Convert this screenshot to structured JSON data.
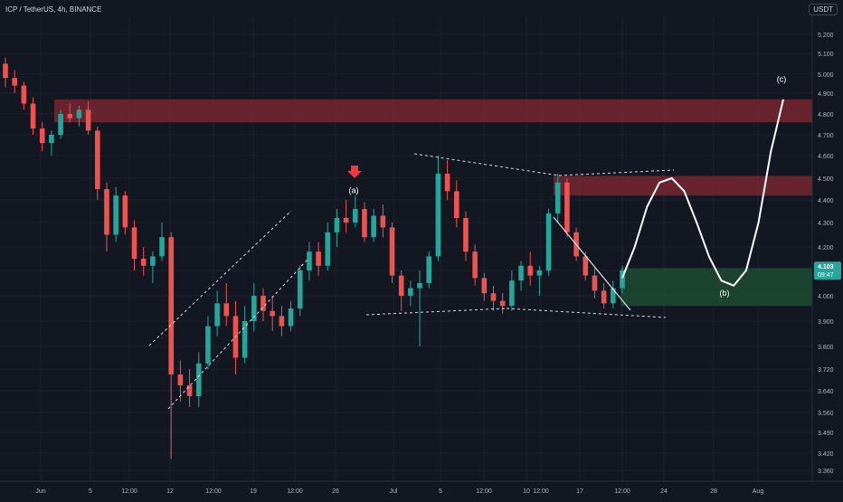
{
  "header": {
    "symbol": "ICP / TetherUS, 4h, BINANCE",
    "currency": "USDT"
  },
  "price_tag": {
    "price": "4.103",
    "countdown": "09:47"
  },
  "colors": {
    "background": "#131722",
    "up": "#26a69a",
    "down": "#ef5350",
    "resistance_zone": "#7a2732",
    "support_zone": "#1e4d33",
    "grid": "#1e222d",
    "path": "#ffffff",
    "arrow": "#f23645"
  },
  "chart_data": {
    "type": "candlestick",
    "x_axis_ticks": [
      "Jun",
      "5",
      "12:00",
      "12",
      "12:00",
      "19",
      "12:00",
      "26",
      "Jul",
      "5",
      "12:00",
      "10",
      "12:00",
      "17",
      "12:00",
      "24",
      "28",
      "Aug"
    ],
    "y_axis_ticks": [
      "5.200",
      "5.100",
      "5.000",
      "4.900",
      "4.800",
      "4.700",
      "4.600",
      "4.500",
      "4.400",
      "4.300",
      "4.200",
      "4.100",
      "4.000",
      "3.900",
      "3.800",
      "3.720",
      "3.640",
      "3.560",
      "3.490",
      "3.420",
      "3.360"
    ],
    "ylim": [
      3.34,
      5.24
    ],
    "zones": [
      {
        "kind": "resistance",
        "low": 4.76,
        "high": 4.87
      },
      {
        "kind": "resistance",
        "low": 4.42,
        "high": 4.51
      },
      {
        "kind": "support",
        "low": 3.96,
        "high": 4.11
      }
    ],
    "annotations": [
      {
        "label": "(a)",
        "price": 4.49
      },
      {
        "label": "(b)",
        "price": 4.0
      },
      {
        "label": "(c)",
        "price": 4.95
      }
    ],
    "projected_path_prices": [
      4.07,
      4.2,
      4.37,
      4.48,
      4.5,
      4.44,
      4.3,
      4.16,
      4.06,
      4.04,
      4.1,
      4.3,
      4.62,
      4.87
    ],
    "candles": [
      [
        5.05,
        5.08,
        4.93,
        4.98
      ],
      [
        4.98,
        5.02,
        4.9,
        4.94
      ],
      [
        4.94,
        4.96,
        4.82,
        4.85
      ],
      [
        4.85,
        4.88,
        4.7,
        4.73
      ],
      [
        4.73,
        4.76,
        4.62,
        4.66
      ],
      [
        4.66,
        4.72,
        4.6,
        4.7
      ],
      [
        4.7,
        4.82,
        4.68,
        4.8
      ],
      [
        4.8,
        4.85,
        4.76,
        4.78
      ],
      [
        4.78,
        4.84,
        4.74,
        4.82
      ],
      [
        4.82,
        4.86,
        4.7,
        4.72
      ],
      [
        4.72,
        4.74,
        4.4,
        4.45
      ],
      [
        4.45,
        4.48,
        4.18,
        4.25
      ],
      [
        4.25,
        4.46,
        4.22,
        4.42
      ],
      [
        4.42,
        4.44,
        4.25,
        4.28
      ],
      [
        4.28,
        4.31,
        4.1,
        4.15
      ],
      [
        4.15,
        4.2,
        4.08,
        4.12
      ],
      [
        4.12,
        4.18,
        4.05,
        4.16
      ],
      [
        4.16,
        4.3,
        4.14,
        4.24
      ],
      [
        4.24,
        4.26,
        3.4,
        3.7
      ],
      [
        3.7,
        3.75,
        3.6,
        3.66
      ],
      [
        3.66,
        3.72,
        3.58,
        3.62
      ],
      [
        3.62,
        3.78,
        3.58,
        3.74
      ],
      [
        3.74,
        3.92,
        3.72,
        3.88
      ],
      [
        3.88,
        4.02,
        3.84,
        3.97
      ],
      [
        3.97,
        4.05,
        3.88,
        3.92
      ],
      [
        3.92,
        3.98,
        3.7,
        3.76
      ],
      [
        3.76,
        3.96,
        3.74,
        3.9
      ],
      [
        3.9,
        4.05,
        3.86,
        4.0
      ],
      [
        4.0,
        4.03,
        3.9,
        3.94
      ],
      [
        3.94,
        4.0,
        3.86,
        3.92
      ],
      [
        3.92,
        3.96,
        3.84,
        3.88
      ],
      [
        3.88,
        3.98,
        3.86,
        3.95
      ],
      [
        3.95,
        4.12,
        3.92,
        4.1
      ],
      [
        4.1,
        4.22,
        4.06,
        4.18
      ],
      [
        4.18,
        4.22,
        4.08,
        4.12
      ],
      [
        4.12,
        4.3,
        4.1,
        4.26
      ],
      [
        4.26,
        4.36,
        4.2,
        4.32
      ],
      [
        4.32,
        4.4,
        4.26,
        4.3
      ],
      [
        4.3,
        4.42,
        4.28,
        4.36
      ],
      [
        4.36,
        4.39,
        4.22,
        4.24
      ],
      [
        4.24,
        4.36,
        4.22,
        4.33
      ],
      [
        4.33,
        4.38,
        4.24,
        4.28
      ],
      [
        4.28,
        4.3,
        4.05,
        4.08
      ],
      [
        4.08,
        4.1,
        3.94,
        4.0
      ],
      [
        4.0,
        4.06,
        3.96,
        4.03
      ],
      [
        4.03,
        4.1,
        3.8,
        4.05
      ],
      [
        4.05,
        4.18,
        4.03,
        4.16
      ],
      [
        4.16,
        4.6,
        4.14,
        4.52
      ],
      [
        4.52,
        4.58,
        4.4,
        4.44
      ],
      [
        4.44,
        4.49,
        4.28,
        4.32
      ],
      [
        4.32,
        4.35,
        4.14,
        4.18
      ],
      [
        4.18,
        4.21,
        4.04,
        4.07
      ],
      [
        4.07,
        4.09,
        3.98,
        4.01
      ],
      [
        4.01,
        4.04,
        3.94,
        3.98
      ],
      [
        3.98,
        4.01,
        3.93,
        3.96
      ],
      [
        3.96,
        4.1,
        3.94,
        4.06
      ],
      [
        4.06,
        4.14,
        4.02,
        4.12
      ],
      [
        4.12,
        4.18,
        4.04,
        4.08
      ],
      [
        4.08,
        4.12,
        4.0,
        4.1
      ],
      [
        4.1,
        4.36,
        4.08,
        4.34
      ],
      [
        4.34,
        4.52,
        4.3,
        4.48
      ],
      [
        4.48,
        4.5,
        4.24,
        4.26
      ],
      [
        4.26,
        4.28,
        4.14,
        4.16
      ],
      [
        4.16,
        4.18,
        4.06,
        4.08
      ],
      [
        4.08,
        4.11,
        3.99,
        4.02
      ],
      [
        4.02,
        4.05,
        3.95,
        3.97
      ],
      [
        3.97,
        4.06,
        3.95,
        4.03
      ],
      [
        4.03,
        4.12,
        4.01,
        4.1
      ]
    ]
  }
}
